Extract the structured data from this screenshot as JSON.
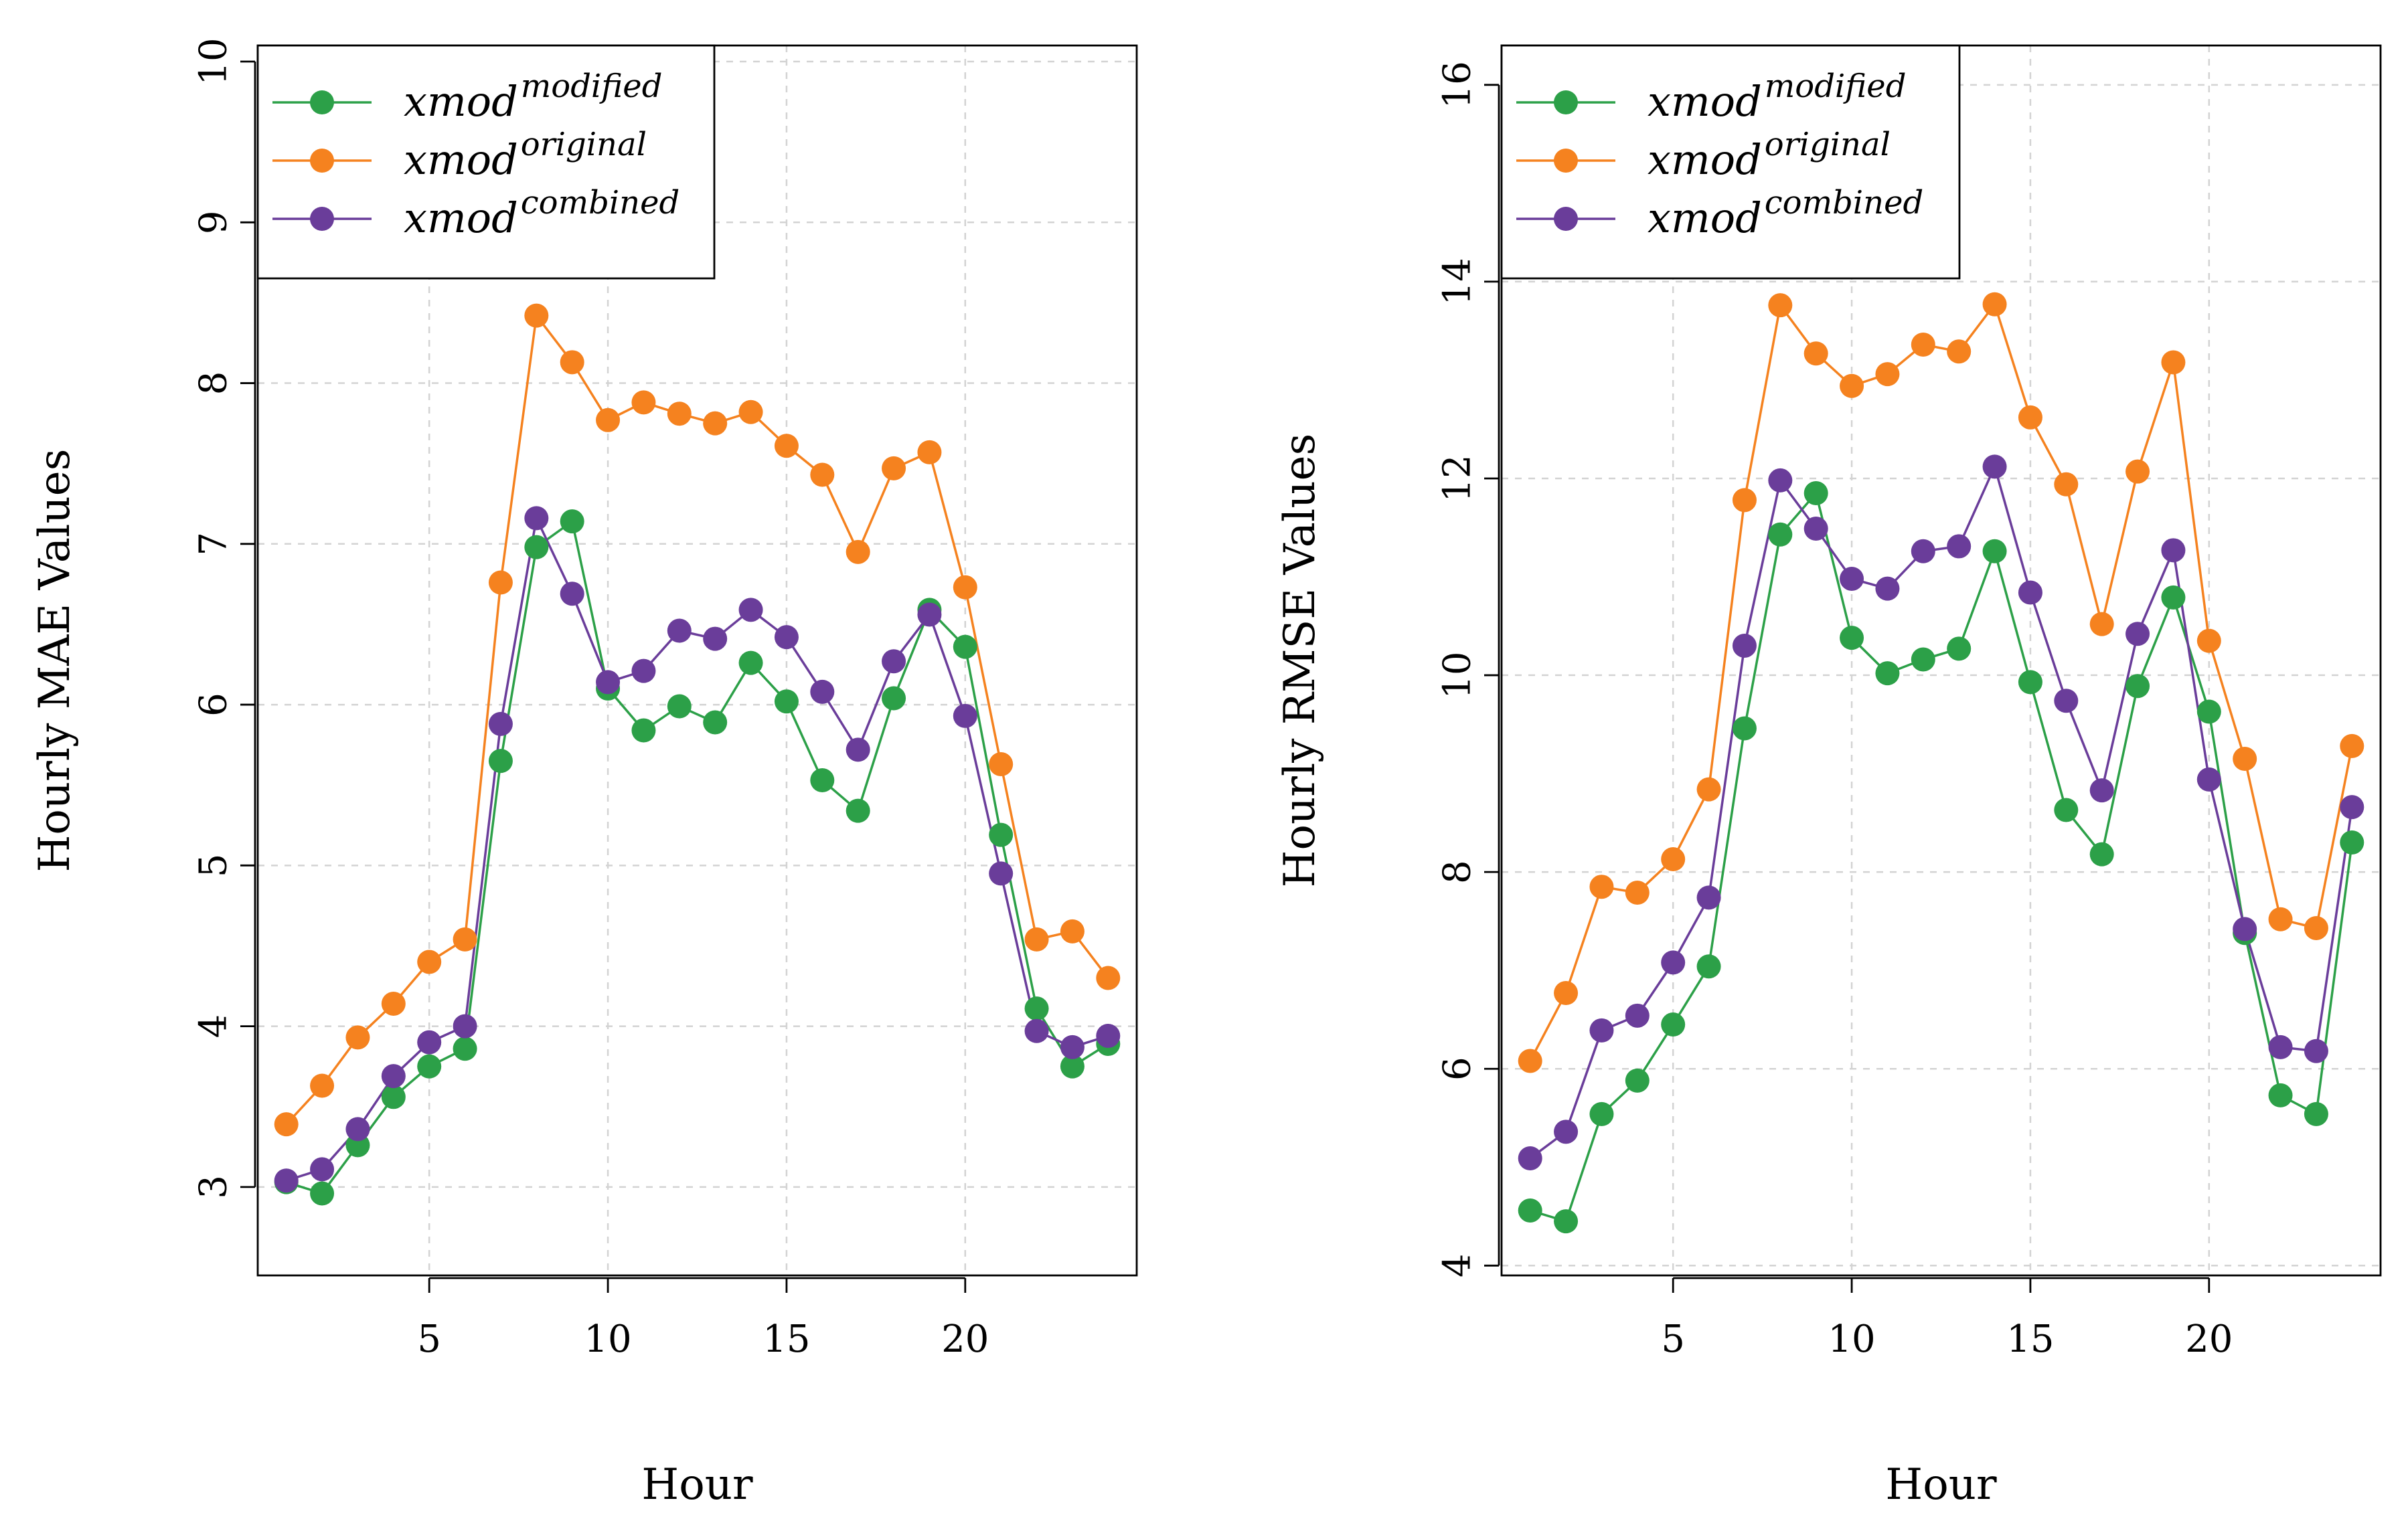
{
  "chart_data": [
    {
      "type": "line",
      "title": "",
      "xlabel": "Hour",
      "ylabel": "Hourly MAE Values",
      "xlim": [
        0.2,
        24.8
      ],
      "ylim": [
        2.45,
        10.1
      ],
      "x_ticks": [
        5,
        10,
        15,
        20
      ],
      "y_ticks": [
        3,
        4,
        5,
        6,
        7,
        8,
        9,
        10
      ],
      "grid": true,
      "legend_position": "top-left",
      "x": [
        1,
        2,
        3,
        4,
        5,
        6,
        7,
        8,
        9,
        10,
        11,
        12,
        13,
        14,
        15,
        16,
        17,
        18,
        19,
        20,
        21,
        22,
        23,
        24
      ],
      "series": [
        {
          "name": "xmod",
          "sup": "modified",
          "color": "#2ca048",
          "values": [
            3.03,
            2.96,
            3.26,
            3.56,
            3.75,
            3.86,
            5.65,
            6.98,
            7.14,
            6.1,
            5.84,
            5.99,
            5.89,
            6.26,
            6.02,
            5.53,
            5.34,
            6.04,
            6.59,
            6.36,
            5.19,
            4.11,
            3.75,
            3.89
          ]
        },
        {
          "name": "xmod",
          "sup": "original",
          "color": "#f5821f",
          "values": [
            3.39,
            3.63,
            3.93,
            4.14,
            4.4,
            4.54,
            6.76,
            8.42,
            8.13,
            7.77,
            7.88,
            7.81,
            7.75,
            7.82,
            7.61,
            7.43,
            6.95,
            7.47,
            7.57,
            6.73,
            5.63,
            4.54,
            4.59,
            4.3
          ]
        },
        {
          "name": "xmod",
          "sup": "combined",
          "color": "#6a3d9a",
          "values": [
            3.04,
            3.11,
            3.36,
            3.69,
            3.9,
            4.0,
            5.88,
            7.16,
            6.69,
            6.14,
            6.21,
            6.46,
            6.41,
            6.59,
            6.42,
            6.08,
            5.72,
            6.27,
            6.56,
            5.93,
            4.95,
            3.97,
            3.87,
            3.94
          ]
        }
      ]
    },
    {
      "type": "line",
      "title": "",
      "xlabel": "Hour",
      "ylabel": "Hourly RMSE Values",
      "xlim": [
        0.2,
        24.8
      ],
      "ylim": [
        3.9,
        16.4
      ],
      "x_ticks": [
        5,
        10,
        15,
        20
      ],
      "y_ticks": [
        4,
        6,
        8,
        10,
        12,
        14,
        16
      ],
      "grid": true,
      "legend_position": "top-left",
      "x": [
        1,
        2,
        3,
        4,
        5,
        6,
        7,
        8,
        9,
        10,
        11,
        12,
        13,
        14,
        15,
        16,
        17,
        18,
        19,
        20,
        21,
        22,
        23,
        24
      ],
      "series": [
        {
          "name": "xmod",
          "sup": "modified",
          "color": "#2ca048",
          "values": [
            4.56,
            4.45,
            5.54,
            5.88,
            6.45,
            7.04,
            9.46,
            11.43,
            11.85,
            10.38,
            10.02,
            10.16,
            10.27,
            11.26,
            9.93,
            8.63,
            8.18,
            9.89,
            10.79,
            9.63,
            7.38,
            5.73,
            5.54,
            8.3
          ]
        },
        {
          "name": "xmod",
          "sup": "original",
          "color": "#f5821f",
          "values": [
            6.08,
            6.77,
            7.85,
            7.79,
            8.13,
            8.84,
            11.78,
            13.76,
            13.27,
            12.94,
            13.06,
            13.36,
            13.29,
            13.77,
            12.62,
            11.94,
            10.52,
            12.07,
            13.18,
            10.35,
            9.15,
            7.52,
            7.43,
            9.28
          ]
        },
        {
          "name": "xmod",
          "sup": "combined",
          "color": "#6a3d9a",
          "values": [
            5.09,
            5.36,
            6.39,
            6.54,
            7.08,
            7.74,
            10.3,
            11.98,
            11.49,
            10.98,
            10.88,
            11.26,
            11.31,
            12.12,
            10.84,
            9.74,
            8.83,
            10.42,
            11.27,
            8.94,
            7.42,
            6.22,
            6.18,
            8.66
          ]
        }
      ]
    }
  ]
}
